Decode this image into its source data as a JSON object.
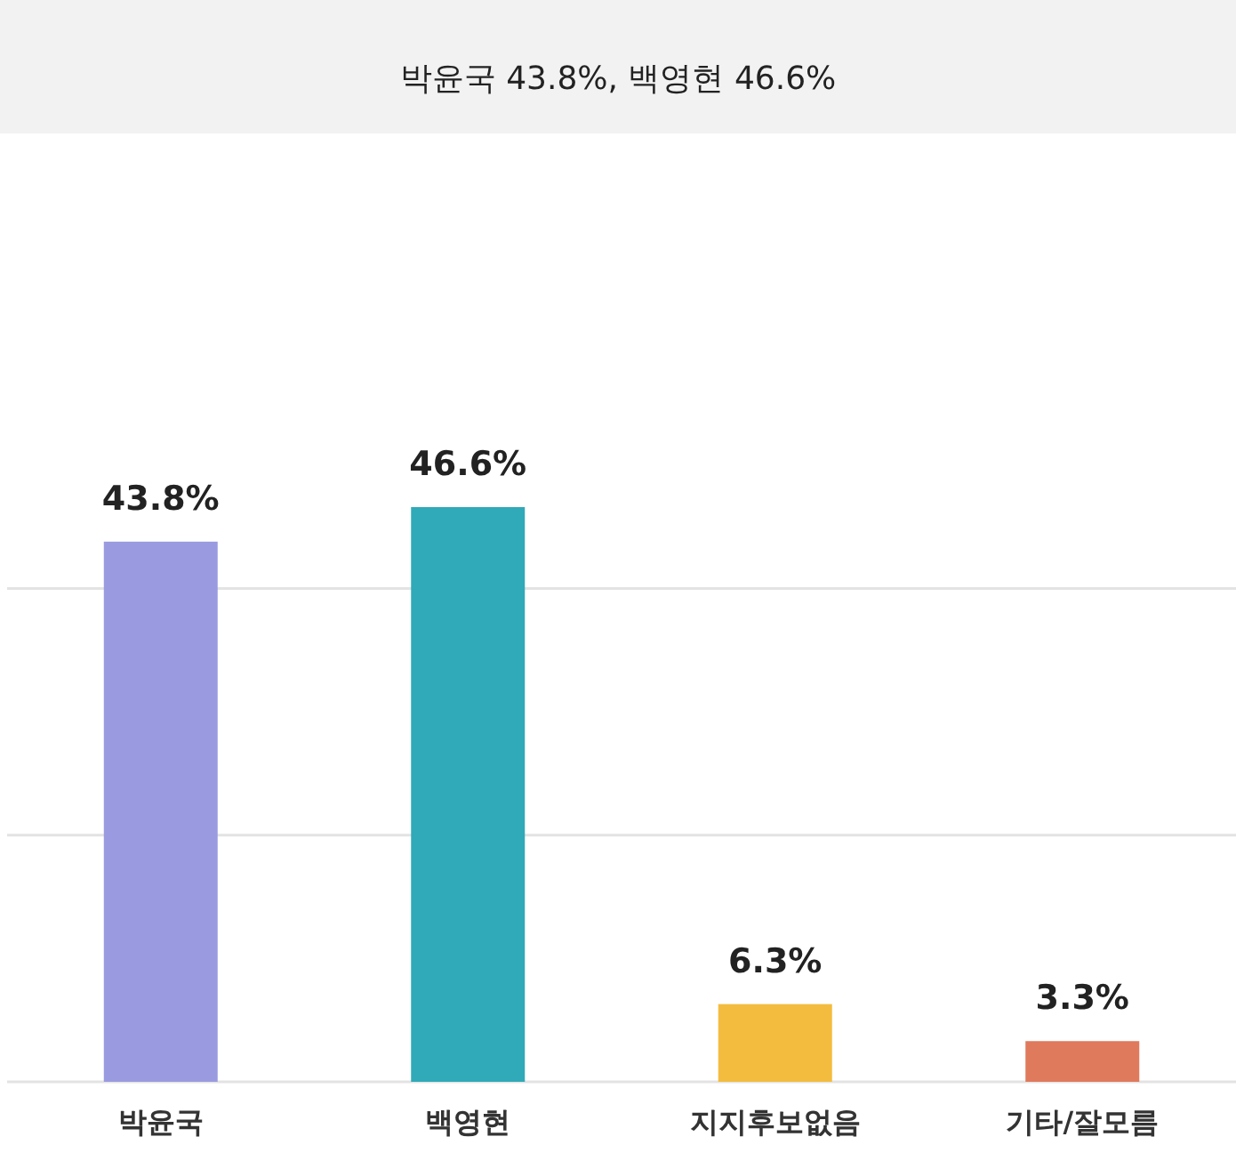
{
  "chart_data": {
    "type": "bar",
    "title": "박윤국 43.8%, 백영현 46.6%",
    "categories": [
      "박윤국",
      "백영현",
      "지지후보없음",
      "기타/잘모름"
    ],
    "values": [
      43.8,
      46.6,
      6.3,
      3.3
    ],
    "value_labels": [
      "43.8%",
      "46.6%",
      "6.3%",
      "3.3%"
    ],
    "colors": [
      "#9a9ae0",
      "#30a9b8",
      "#f4bc3e",
      "#df7a5c"
    ],
    "ref_lines": [
      {
        "axis": "y",
        "value": 0,
        "color": "#e3e3e3"
      },
      {
        "axis": "y",
        "value": 20,
        "color": "#e3e3e3"
      },
      {
        "axis": "y",
        "value": 40,
        "color": "#e3e3e3"
      }
    ],
    "tick_labels": "x"
  }
}
